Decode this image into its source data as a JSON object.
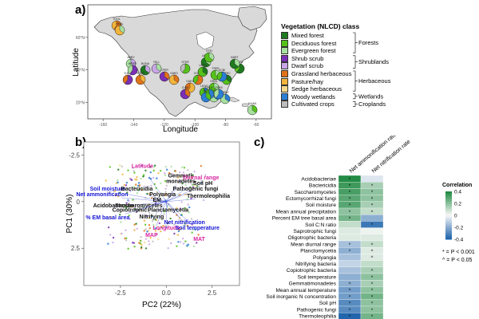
{
  "panels": {
    "a": "a)",
    "b": "b)",
    "c": "c)"
  },
  "map": {
    "xlabel": "Longitude",
    "ylabel": "Latitude",
    "xticks": [
      {
        "v": -160,
        "l": "-160"
      },
      {
        "v": -140,
        "l": "-140"
      },
      {
        "v": -120,
        "l": "-120"
      },
      {
        "v": -100,
        "l": "-100"
      },
      {
        "v": -80,
        "l": "-80"
      },
      {
        "v": -60,
        "l": "-60"
      }
    ],
    "yticks": [
      {
        "v": 20,
        "l": "20°N"
      },
      {
        "v": 40,
        "l": "40°N"
      },
      {
        "v": 60,
        "l": "60°N"
      }
    ],
    "sites": [
      "TOOL",
      "HEAL",
      "BONA",
      "STER",
      "UNDE",
      "STEI",
      "SJER",
      "SOAP",
      "NIWO",
      "KONZ",
      "UKFS",
      "TREE",
      "HARV",
      "BART",
      "SERC",
      "SCBI",
      "ORNL",
      "DSNY",
      "OAES",
      "JERC",
      "LENO",
      "OSBS",
      "GUAN",
      "CPER",
      "DELA",
      "YELL",
      "ABBY",
      "WREF",
      "TALL",
      "CLBJ"
    ]
  },
  "legend": {
    "title": "Vegetation (NLCD) class",
    "items": [
      {
        "label": "Mixed forest",
        "color": "#1f7a1f"
      },
      {
        "label": "Deciduous forest",
        "color": "#55c21a"
      },
      {
        "label": "Evergreen forest",
        "color": "#a8e0a0"
      },
      {
        "label": "Shrub scrub",
        "color": "#7b2fb5"
      },
      {
        "label": "Dwarf scrub",
        "color": "#c8a6e6"
      },
      {
        "label": "Grassland herbaceous",
        "color": "#e0731a"
      },
      {
        "label": "Pasture/hay",
        "color": "#f2b53c"
      },
      {
        "label": "Sedge herbaceous",
        "color": "#f5d98c"
      },
      {
        "label": "Woody wetlands",
        "color": "#2a7fd4"
      },
      {
        "label": "Cultivated crops",
        "color": "#bdbdbd"
      }
    ],
    "groups": [
      "Forests",
      "Shrublands",
      "Herbaceous",
      "Wetlands",
      "Croplands"
    ]
  },
  "pca": {
    "xlabel": "PC2 (22%)",
    "ylabel": "PC1 (30%)",
    "xticks": [
      {
        "v": -2.5,
        "l": "-2.5"
      },
      {
        "v": 0,
        "l": "0.0"
      },
      {
        "v": 2.5,
        "l": "2.5"
      }
    ],
    "yticks": [
      {
        "v": -2.5,
        "l": "-2.5"
      },
      {
        "v": 0,
        "l": "0"
      },
      {
        "v": 2.5,
        "l": "2.5"
      }
    ],
    "labels": [
      {
        "t": "Latitude",
        "x": -1.3,
        "y": -1.8,
        "c": "#d6249f"
      },
      {
        "t": "Gemmati-",
        "x": 0.8,
        "y": -1.3,
        "c": "#111"
      },
      {
        "t": "monadetes",
        "x": 0.8,
        "y": -1.0,
        "c": "#111"
      },
      {
        "t": "Diurnal range",
        "x": 1.9,
        "y": -1.2,
        "c": "#d6249f"
      },
      {
        "t": "Soil pH",
        "x": 2.0,
        "y": -0.9,
        "c": "#111"
      },
      {
        "t": "Soil moisture",
        "x": -3.2,
        "y": -0.6,
        "c": "#1515d6"
      },
      {
        "t": "Bactericidia",
        "x": -1.6,
        "y": -0.6,
        "c": "#111"
      },
      {
        "t": "Pathogenic fungi",
        "x": 1.6,
        "y": -0.6,
        "c": "#111"
      },
      {
        "t": "Net ammonification",
        "x": -3.5,
        "y": -0.3,
        "c": "#1515d6"
      },
      {
        "t": "Polyangia",
        "x": -0.2,
        "y": -0.3,
        "c": "#111"
      },
      {
        "t": "Thermoleophilia",
        "x": 2.3,
        "y": -0.2,
        "c": "#111"
      },
      {
        "t": "EM",
        "x": -0.5,
        "y": 0.0,
        "c": "#111"
      },
      {
        "t": "Acidobacteriae",
        "x": -2.9,
        "y": 0.3,
        "c": "#111"
      },
      {
        "t": "Saccharomycetes",
        "x": -1.5,
        "y": 0.3,
        "c": "#111"
      },
      {
        "t": "Copiotrophic",
        "x": -2.0,
        "y": 0.55,
        "c": "#111"
      },
      {
        "t": "Planctomycetia",
        "x": 0.1,
        "y": 0.55,
        "c": "#111"
      },
      {
        "t": "% EM basal area",
        "x": -3.2,
        "y": 0.95,
        "c": "#1515d6"
      },
      {
        "t": "Nitrifying",
        "x": -0.8,
        "y": 0.9,
        "c": "#111"
      },
      {
        "t": "Net nitrification",
        "x": 1.0,
        "y": 1.2,
        "c": "#1515d6"
      },
      {
        "t": "Longitude",
        "x": 0.0,
        "y": 1.5,
        "c": "#d6249f"
      },
      {
        "t": "Soil temperature",
        "x": 1.7,
        "y": 1.5,
        "c": "#1515d6"
      },
      {
        "t": "MAP",
        "x": -0.8,
        "y": 1.9,
        "c": "#d6249f"
      },
      {
        "t": "MAT",
        "x": 1.8,
        "y": 2.1,
        "c": "#d6249f"
      }
    ]
  },
  "corr": {
    "columns": [
      "Net ammonification rate",
      "Net nitrification rate"
    ],
    "rows": [
      {
        "label": "Acidobacteriae",
        "v": [
          0.4,
          -0.05
        ],
        "s": [
          "*",
          ""
        ]
      },
      {
        "label": "Bactericidia",
        "v": [
          0.35,
          0.15
        ],
        "s": [
          "*",
          "*"
        ]
      },
      {
        "label": "Saccharomycetes",
        "v": [
          0.33,
          0.2
        ],
        "s": [
          "*",
          "*"
        ]
      },
      {
        "label": "Ectomycorrhizal fungi",
        "v": [
          0.3,
          0.2
        ],
        "s": [
          "*",
          "*"
        ]
      },
      {
        "label": "Soil moisture",
        "v": [
          0.3,
          0.15
        ],
        "s": [
          "*",
          "*"
        ]
      },
      {
        "label": "Mean annual precipitation",
        "v": [
          0.2,
          0.1
        ],
        "s": [
          "*",
          "^"
        ]
      },
      {
        "label": "Percent EM tree basal area",
        "v": [
          0.25,
          -0.2
        ],
        "s": [
          "*",
          ""
        ]
      },
      {
        "label": "Soil C:N ratio",
        "v": [
          0.1,
          -0.35
        ],
        "s": [
          "",
          "*"
        ]
      },
      {
        "label": "Saprotrophic fungi",
        "v": [
          0.05,
          0.02
        ],
        "s": [
          "",
          ""
        ]
      },
      {
        "label": "Oligotrophic bacteria",
        "v": [
          0.05,
          0.05
        ],
        "s": [
          "",
          ""
        ]
      },
      {
        "label": "Mean diurnal range",
        "v": [
          -0.15,
          0.1
        ],
        "s": [
          "*",
          "^"
        ]
      },
      {
        "label": "Planctomycetia",
        "v": [
          -0.2,
          0.05
        ],
        "s": [
          "*",
          "^"
        ]
      },
      {
        "label": "Polyangia",
        "v": [
          -0.15,
          0.05
        ],
        "s": [
          "",
          "^"
        ]
      },
      {
        "label": "Nitrifying bacteria",
        "v": [
          -0.1,
          0.1
        ],
        "s": [
          "",
          ""
        ]
      },
      {
        "label": "Copiotrophic bacteria",
        "v": [
          -0.15,
          0.15
        ],
        "s": [
          "",
          "^"
        ]
      },
      {
        "label": "Soil temperature",
        "v": [
          -0.2,
          0.2
        ],
        "s": [
          "",
          "*"
        ]
      },
      {
        "label": "Gemmatimonadetes",
        "v": [
          -0.2,
          0.15
        ],
        "s": [
          "^",
          "^"
        ]
      },
      {
        "label": "Mean annual temperature",
        "v": [
          -0.25,
          0.2
        ],
        "s": [
          "^",
          "*"
        ]
      },
      {
        "label": "Soil inorganic N concentration",
        "v": [
          -0.25,
          0.25
        ],
        "s": [
          "*",
          "*"
        ]
      },
      {
        "label": "Soil pH",
        "v": [
          -0.3,
          0.2
        ],
        "s": [
          "*",
          "*"
        ]
      },
      {
        "label": "Pathogenic fungi",
        "v": [
          -0.3,
          0.2
        ],
        "s": [
          "*",
          "*"
        ]
      },
      {
        "label": "Thermoleophilia",
        "v": [
          -0.4,
          0.25
        ],
        "s": [
          "*",
          "*"
        ]
      }
    ],
    "colorbar_title": "Correlation",
    "colorbar_ticks": [
      {
        "v": 0.4,
        "l": "0.4"
      },
      {
        "v": 0.2,
        "l": "0.2"
      },
      {
        "v": 0,
        "l": "0"
      },
      {
        "v": -0.2,
        "l": "-0.2"
      },
      {
        "v": -0.4,
        "l": "-0.4"
      }
    ],
    "sig_note1": "* = P < 0.001",
    "sig_note2": "^ = P < 0.05"
  }
}
